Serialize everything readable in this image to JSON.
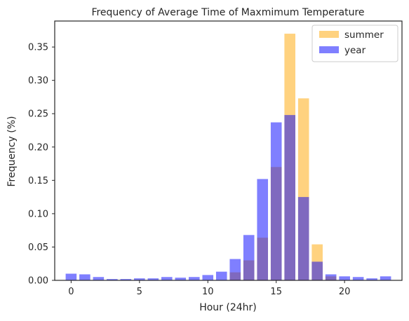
{
  "chart_data": {
    "type": "bar",
    "title": "Frequency of Average Time of Maxmimum Temperature",
    "xlabel": "Hour (24hr)",
    "ylabel": "Frequency (%)",
    "xlim": [
      -1.2,
      24.2
    ],
    "ylim": [
      0,
      0.389
    ],
    "xticks": [
      0,
      5,
      10,
      15,
      20
    ],
    "yticks": [
      0.0,
      0.05,
      0.1,
      0.15,
      0.2,
      0.25,
      0.3,
      0.35
    ],
    "ytick_labels": [
      "0.00",
      "0.05",
      "0.10",
      "0.15",
      "0.20",
      "0.25",
      "0.30",
      "0.35"
    ],
    "x": [
      0,
      1,
      2,
      3,
      4,
      5,
      6,
      7,
      8,
      9,
      10,
      11,
      12,
      13,
      14,
      15,
      16,
      17,
      18,
      19,
      20,
      21,
      22,
      23
    ],
    "grid": false,
    "legend_position": "top-right",
    "series": [
      {
        "name": "summer",
        "color": "#FFA500",
        "opacity": 0.5,
        "values": [
          0,
          0,
          0,
          0,
          0,
          0,
          0,
          0,
          0,
          0,
          0,
          0,
          0.012,
          0.03,
          0.064,
          0.17,
          0.37,
          0.273,
          0.054,
          0.006,
          0,
          0,
          0,
          0
        ]
      },
      {
        "name": "year",
        "color": "#0000FF",
        "opacity": 0.5,
        "values": [
          0.01,
          0.009,
          0.005,
          0.002,
          0.002,
          0.003,
          0.003,
          0.005,
          0.004,
          0.005,
          0.008,
          0.013,
          0.032,
          0.068,
          0.152,
          0.237,
          0.248,
          0.125,
          0.028,
          0.009,
          0.006,
          0.005,
          0.003,
          0.006
        ]
      }
    ]
  }
}
